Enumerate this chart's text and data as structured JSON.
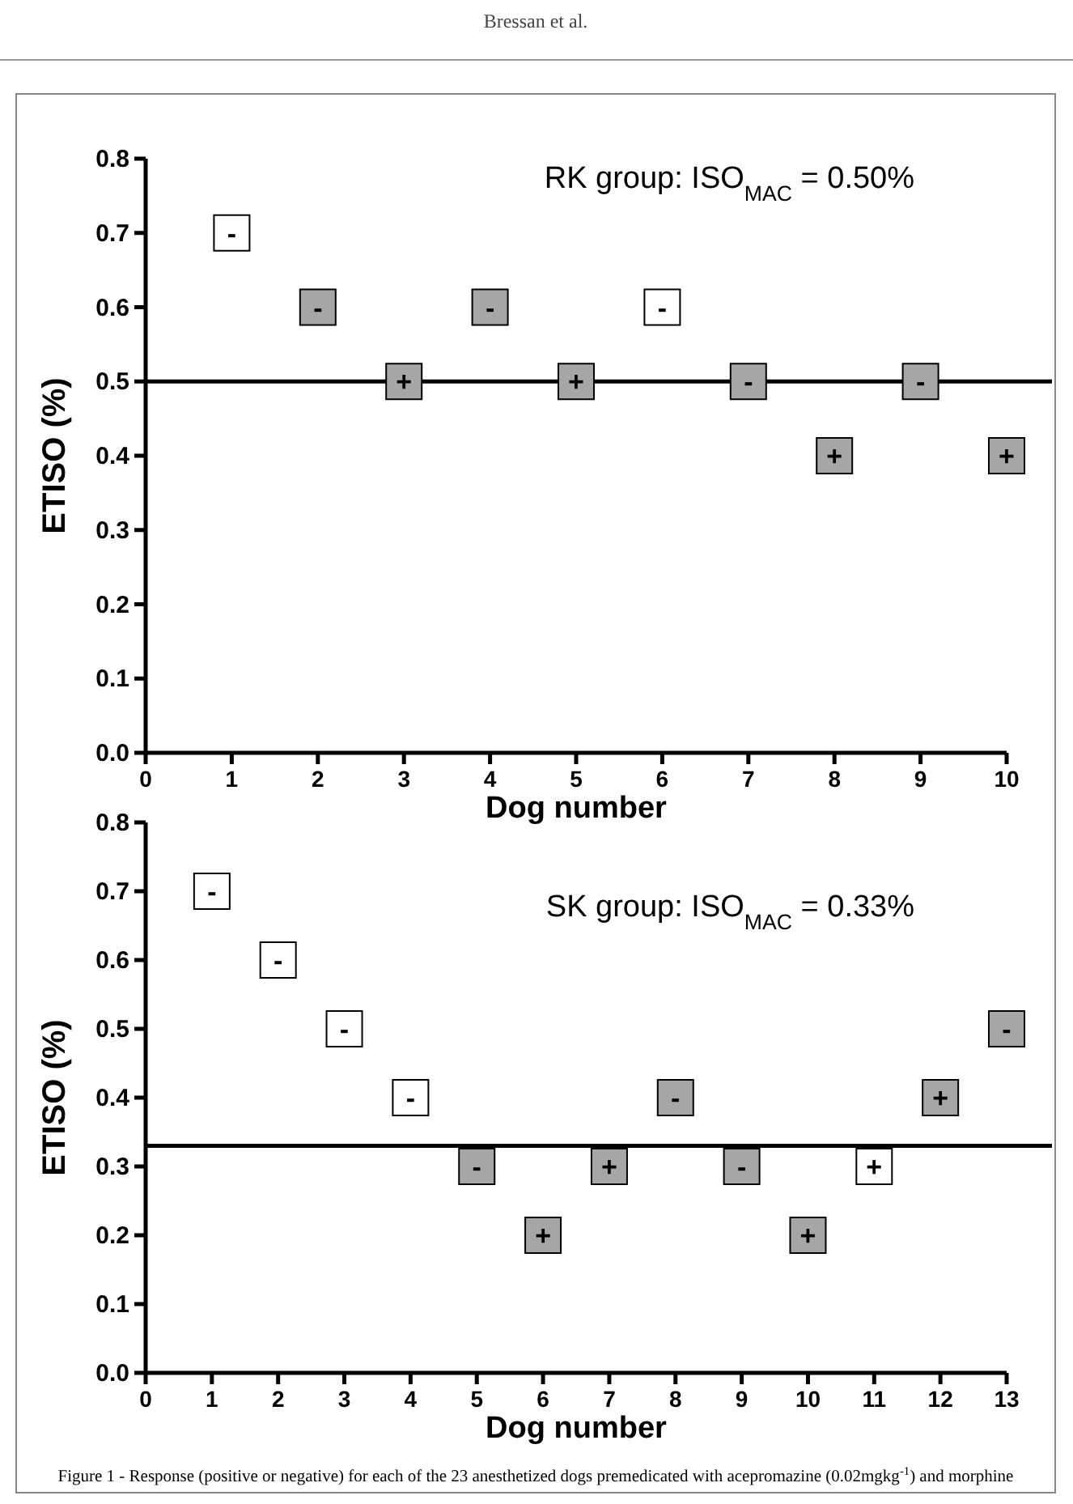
{
  "chart_data": [
    {
      "type": "scatter",
      "xlabel": "Dog number",
      "ylabel": "ETISO (%)",
      "marker": "square",
      "grid": false,
      "xlim": [
        0,
        10
      ],
      "xticks": [
        0,
        1,
        2,
        3,
        4,
        5,
        6,
        7,
        8,
        9,
        10
      ],
      "ylim": [
        0,
        0.8
      ],
      "yticks": [
        {
          "value": 0,
          "label": "0.0"
        },
        0.1,
        0.2,
        0.3,
        0.4,
        0.5,
        0.6,
        0.7,
        0.8
      ],
      "ref_lines": [
        {
          "axis": "y",
          "value": 0.5,
          "color": "#000000"
        }
      ],
      "annotations": [
        "Bressan et al.",
        "RK group: ISO$_{MAC}$ = 0.50%"
      ],
      "series": [
        {
          "color": "#ffffff",
          "x": [
            1,
            6
          ],
          "values": [
            0.7,
            0.6
          ],
          "value_labels": [
            "-",
            "-"
          ]
        },
        {
          "color": "#a6a6a6",
          "x": [
            2,
            3,
            4,
            5,
            7,
            8,
            9,
            10
          ],
          "values": [
            0.6,
            0.5,
            0.6,
            0.5,
            0.5,
            0.4,
            0.5,
            0.4
          ],
          "value_labels": [
            "-",
            "+",
            "-",
            "+",
            "-",
            "+",
            "-",
            "+"
          ]
        }
      ]
    },
    {
      "type": "scatter",
      "xlabel": "Dog number",
      "ylabel": "ETISO (%)",
      "marker": "square",
      "grid": false,
      "xlim": [
        0,
        13
      ],
      "xticks": [
        0,
        1,
        2,
        3,
        4,
        5,
        6,
        7,
        8,
        9,
        10,
        11,
        12,
        13
      ],
      "ylim": [
        0,
        0.8
      ],
      "yticks": [
        {
          "value": 0,
          "label": "0.0"
        },
        0.1,
        0.2,
        0.3,
        0.4,
        0.5,
        0.6,
        0.7,
        0.8
      ],
      "ref_lines": [
        {
          "axis": "y",
          "value": 0.33,
          "color": "#000000"
        }
      ],
      "annotations": [
        "SK group: ISO$_{MAC}$ = 0.33%",
        "Figure 1 - Response (positive or negative) for each of the 23 anesthetized dogs premedicated with acepromazine (0.02mgkg$^{-1}$) and morphine"
      ],
      "series": [
        {
          "color": "#ffffff",
          "x": [
            1,
            2,
            3,
            4,
            11
          ],
          "values": [
            0.7,
            0.6,
            0.5,
            0.4,
            0.3
          ],
          "value_labels": [
            "-",
            "-",
            "-",
            "-",
            "+"
          ]
        },
        {
          "color": "#a6a6a6",
          "x": [
            5,
            6,
            7,
            8,
            9,
            10,
            12,
            13
          ],
          "values": [
            0.3,
            0.2,
            0.3,
            0.4,
            0.3,
            0.2,
            0.4,
            0.5
          ],
          "value_labels": [
            "-",
            "+",
            "+",
            "-",
            "-",
            "+",
            "+",
            "-"
          ]
        }
      ]
    }
  ]
}
